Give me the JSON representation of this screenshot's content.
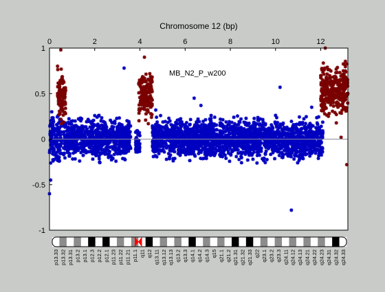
{
  "chart_data": {
    "type": "scatter",
    "title": "Chromosome 12 (bp)",
    "annotation": "MB_N2_P_w200",
    "xlim": [
      0,
      13.2
    ],
    "ylim": [
      -1,
      1
    ],
    "x_ticks": [
      "0",
      "2",
      "4",
      "6",
      "8",
      "10",
      "12"
    ],
    "x_tick_values": [
      0,
      2,
      4,
      6,
      8,
      10,
      12
    ],
    "y_ticks": [
      "1",
      "0.5",
      "0",
      "-0.5",
      "-1"
    ],
    "y_tick_values": [
      1,
      0.5,
      0,
      -0.5,
      -1
    ],
    "reference_line_y": 0,
    "series": [
      {
        "color": "#0000c0",
        "segments": [
          {
            "x_range": [
              0.0,
              0.55
            ],
            "y_range": [
              -0.35,
              0.35
            ]
          },
          {
            "x_range": [
              0.62,
              3.6
            ],
            "y_range": [
              -0.3,
              0.3
            ]
          },
          {
            "x_range": [
              3.8,
              4.0
            ],
            "y_range": [
              -0.25,
              0.2
            ]
          },
          {
            "x_range": [
              4.55,
              12.1
            ],
            "y_range": [
              -0.3,
              0.3
            ]
          }
        ],
        "outliers": [
          [
            0.0,
            -0.6
          ],
          [
            0.05,
            -0.45
          ],
          [
            0.1,
            0.3
          ],
          [
            3.3,
            0.78
          ],
          [
            4.7,
            0.32
          ],
          [
            6.4,
            0.45
          ],
          [
            6.7,
            0.37
          ],
          [
            10.2,
            0.57
          ],
          [
            10.7,
            -0.78
          ],
          [
            11.6,
            0.35
          ]
        ]
      },
      {
        "color": "#7a0000",
        "segments": [
          {
            "x_range": [
              0.35,
              0.72
            ],
            "y_range": [
              0.1,
              0.85
            ]
          },
          {
            "x_range": [
              3.95,
              4.55
            ],
            "y_range": [
              0.15,
              0.8
            ]
          },
          {
            "x_range": [
              12.0,
              13.2
            ],
            "y_range": [
              0.15,
              0.9
            ]
          }
        ],
        "outliers": [
          [
            0.5,
            0.98
          ],
          [
            4.2,
            0.9
          ],
          [
            12.2,
            1.0
          ],
          [
            12.9,
            0.02
          ],
          [
            13.15,
            -0.28
          ]
        ]
      }
    ],
    "cytobands": [
      {
        "label": "p13.33",
        "stain": "white"
      },
      {
        "label": "p13.32",
        "stain": "gray"
      },
      {
        "label": "p13.31",
        "stain": "white"
      },
      {
        "label": "p13.2",
        "stain": "gray"
      },
      {
        "label": "p13.1",
        "stain": "white"
      },
      {
        "label": "p12.3",
        "stain": "black"
      },
      {
        "label": "p12.2",
        "stain": "white"
      },
      {
        "label": "p12.1",
        "stain": "black"
      },
      {
        "label": "p11.23",
        "stain": "white"
      },
      {
        "label": "p11.22",
        "stain": "gray"
      },
      {
        "label": "p11.21",
        "stain": "white"
      },
      {
        "label": "p11.1",
        "stain": "gray"
      },
      {
        "label": "q11",
        "stain": "white"
      },
      {
        "label": "q12",
        "stain": "black"
      },
      {
        "label": "q13.11",
        "stain": "white"
      },
      {
        "label": "q13.12",
        "stain": "gray"
      },
      {
        "label": "q13.13",
        "stain": "white"
      },
      {
        "label": "q13.2",
        "stain": "gray"
      },
      {
        "label": "q13.3",
        "stain": "white"
      },
      {
        "label": "q14.1",
        "stain": "black"
      },
      {
        "label": "q14.2",
        "stain": "white"
      },
      {
        "label": "q14.3",
        "stain": "gray"
      },
      {
        "label": "q15",
        "stain": "white"
      },
      {
        "label": "q21.1",
        "stain": "gray"
      },
      {
        "label": "q21.2",
        "stain": "white"
      },
      {
        "label": "q21.31",
        "stain": "black"
      },
      {
        "label": "q21.32",
        "stain": "white"
      },
      {
        "label": "q21.33",
        "stain": "black"
      },
      {
        "label": "q22",
        "stain": "white"
      },
      {
        "label": "q23.1",
        "stain": "gray"
      },
      {
        "label": "q23.2",
        "stain": "white"
      },
      {
        "label": "q23.3",
        "stain": "gray"
      },
      {
        "label": "q24.11",
        "stain": "white"
      },
      {
        "label": "q24.12",
        "stain": "gray"
      },
      {
        "label": "q24.13",
        "stain": "white"
      },
      {
        "label": "q24.21",
        "stain": "gray"
      },
      {
        "label": "q24.22",
        "stain": "white"
      },
      {
        "label": "q24.23",
        "stain": "gray"
      },
      {
        "label": "q24.31",
        "stain": "white"
      },
      {
        "label": "q24.32",
        "stain": "black"
      },
      {
        "label": "q24.33",
        "stain": "white"
      }
    ],
    "centromere_color": "#ff0000"
  }
}
